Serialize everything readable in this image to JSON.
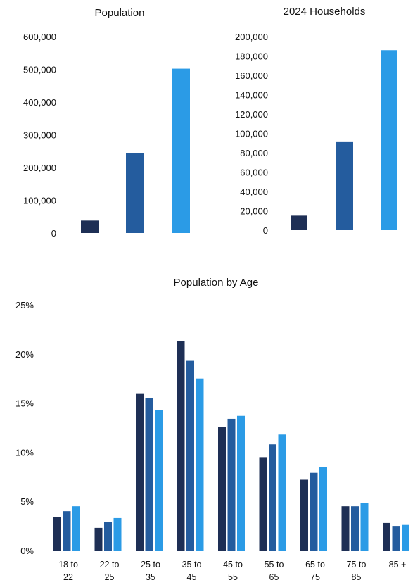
{
  "colors": {
    "series1": "#1e2f55",
    "series2": "#245c9e",
    "series3": "#2b9be6"
  },
  "chart_data": [
    {
      "type": "bar",
      "title": "Population",
      "ylim": [
        0,
        600000
      ],
      "yticks": [
        "0",
        "100,000",
        "200,000",
        "300,000",
        "400,000",
        "500,000",
        "600,000"
      ],
      "grid": false,
      "legend": "none",
      "values": [
        38000,
        243000,
        502000
      ]
    },
    {
      "type": "bar",
      "title": "2024 Households",
      "ylim": [
        0,
        200000
      ],
      "yticks": [
        "0",
        "20,000",
        "40,000",
        "60,000",
        "80,000",
        "100,000",
        "120,000",
        "140,000",
        "160,000",
        "180,000",
        "200,000"
      ],
      "grid": false,
      "legend": "none",
      "values": [
        15000,
        91000,
        186000
      ]
    },
    {
      "type": "bar",
      "title": "Population by Age",
      "ylim": [
        0,
        25
      ],
      "yticks": [
        "0%",
        "5%",
        "10%",
        "15%",
        "20%",
        "25%"
      ],
      "grid": false,
      "legend": "none",
      "categories": [
        [
          "18 to",
          "22"
        ],
        [
          "22 to",
          "25"
        ],
        [
          "25 to",
          "35"
        ],
        [
          "35 to",
          "45"
        ],
        [
          "45 to",
          "55"
        ],
        [
          "55 to",
          "65"
        ],
        [
          "65 to",
          "75"
        ],
        [
          "75 to",
          "85"
        ],
        [
          "85 +"
        ]
      ],
      "series": [
        {
          "values": [
            3.4,
            2.3,
            16.0,
            21.3,
            12.6,
            9.5,
            7.2,
            4.5,
            2.8
          ]
        },
        {
          "values": [
            4.0,
            2.9,
            15.5,
            19.3,
            13.4,
            10.8,
            7.9,
            4.5,
            2.5
          ]
        },
        {
          "values": [
            4.5,
            3.3,
            14.3,
            17.5,
            13.7,
            11.8,
            8.5,
            4.8,
            2.6
          ]
        }
      ]
    }
  ]
}
